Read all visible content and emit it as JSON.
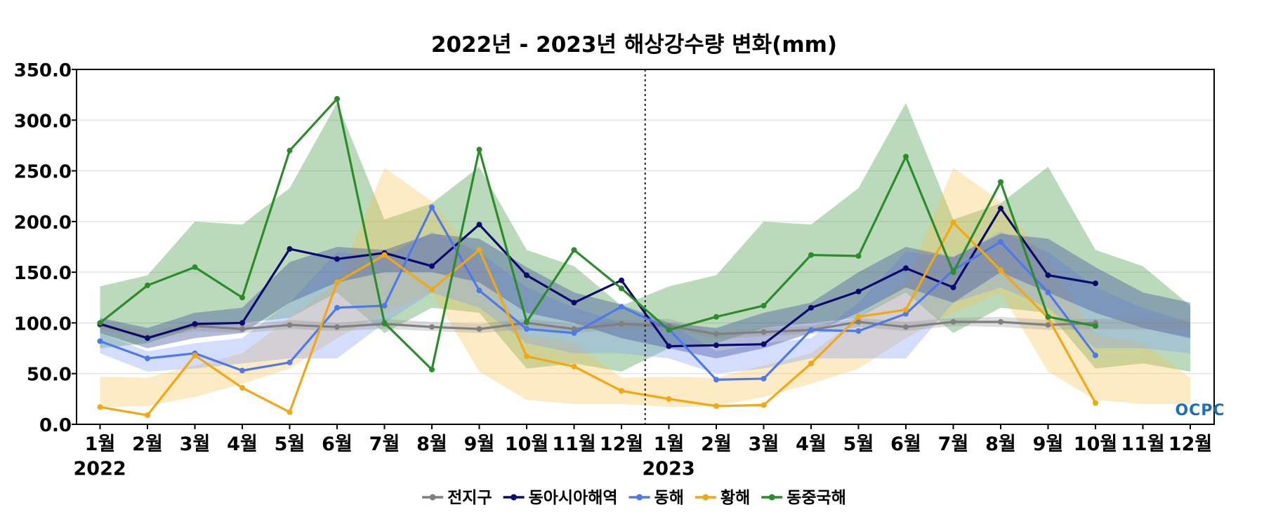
{
  "chart_data": {
    "type": "line",
    "title": "2022년 - 2023년 해상강수량 변화(mm)",
    "ylim": [
      0,
      350
    ],
    "yticks": [
      0,
      50,
      100,
      150,
      200,
      250,
      300,
      350
    ],
    "ytick_labels": [
      "0.0",
      "50.0",
      "100.0",
      "150.0",
      "200.0",
      "250.0",
      "300.0",
      "350.0"
    ],
    "grid": "horizontal",
    "legend_position": "bottom-center",
    "categories": [
      "1월",
      "2월",
      "3월",
      "4월",
      "5월",
      "6월",
      "7월",
      "8월",
      "9월",
      "10월",
      "11월",
      "12월",
      "1월",
      "2월",
      "3월",
      "4월",
      "5월",
      "6월",
      "7월",
      "8월",
      "9월",
      "10월",
      "11월",
      "12월"
    ],
    "years": [
      {
        "label": "2022",
        "index": 0
      },
      {
        "label": "2023",
        "index": 12
      }
    ],
    "divider_after_index": 11,
    "series": [
      {
        "name": "전지구",
        "color": "#808080",
        "values": [
          98,
          86,
          97,
          94,
          98,
          96,
          99,
          96,
          94,
          100,
          94,
          99,
          97,
          89,
          91,
          93,
          101,
          96,
          101,
          101,
          98,
          100,
          null,
          null
        ],
        "band_low": [
          94,
          84,
          92,
          90,
          94,
          92,
          94,
          92,
          90,
          94,
          90,
          94,
          94,
          84,
          87,
          89,
          96,
          92,
          97,
          96,
          93,
          94,
          94,
          94
        ],
        "band_high": [
          104,
          91,
          101,
          98,
          103,
          100,
          104,
          101,
          99,
          104,
          99,
          103,
          104,
          91,
          95,
          97,
          105,
          101,
          105,
          106,
          103,
          104,
          104,
          104
        ]
      },
      {
        "name": "동아시아해역",
        "color": "#0a0a6e",
        "values": [
          99,
          85,
          99,
          100,
          173,
          163,
          169,
          156,
          197,
          147,
          120,
          142,
          77,
          78,
          79,
          115,
          131,
          154,
          135,
          213,
          147,
          139,
          null,
          null
        ],
        "band_low": [
          90,
          75,
          85,
          90,
          120,
          140,
          150,
          150,
          140,
          110,
          100,
          85,
          75,
          65,
          75,
          90,
          110,
          135,
          120,
          150,
          130,
          110,
          95,
          85
        ],
        "band_high": [
          105,
          95,
          110,
          115,
          160,
          175,
          172,
          188,
          183,
          155,
          130,
          118,
          100,
          95,
          110,
          120,
          150,
          175,
          165,
          188,
          183,
          155,
          130,
          120
        ]
      },
      {
        "name": "동해",
        "color": "#4f78ea",
        "values": [
          82,
          65,
          70,
          53,
          61,
          115,
          117,
          214,
          132,
          94,
          90,
          116,
          94,
          44,
          45,
          93,
          92,
          109,
          152,
          180,
          130,
          68,
          null,
          null
        ],
        "band_low": [
          70,
          52,
          55,
          60,
          65,
          65,
          100,
          130,
          115,
          80,
          70,
          70,
          65,
          50,
          55,
          65,
          65,
          65,
          120,
          135,
          115,
          75,
          75,
          70
        ],
        "band_high": [
          90,
          72,
          80,
          85,
          120,
          170,
          165,
          190,
          170,
          135,
          115,
          100,
          100,
          72,
          80,
          85,
          120,
          170,
          165,
          190,
          170,
          135,
          115,
          100
        ]
      },
      {
        "name": "황해",
        "color": "#f2a812",
        "values": [
          17,
          9,
          68,
          36,
          12,
          140,
          167,
          133,
          172,
          67,
          57,
          33,
          25,
          18,
          19,
          60,
          106,
          113,
          199,
          152,
          105,
          21,
          null,
          null
        ],
        "band_low": [
          17,
          18,
          27,
          40,
          55,
          85,
          110,
          130,
          52,
          24,
          20,
          20,
          17,
          18,
          27,
          40,
          55,
          85,
          110,
          130,
          52,
          24,
          20,
          20
        ],
        "band_high": [
          47,
          46,
          58,
          70,
          105,
          140,
          253,
          220,
          160,
          88,
          80,
          46,
          47,
          46,
          58,
          70,
          105,
          140,
          253,
          220,
          160,
          88,
          80,
          46
        ]
      },
      {
        "name": "동중국해",
        "color": "#2c8c2c",
        "values": [
          100,
          137,
          155,
          125,
          270,
          321,
          100,
          54,
          271,
          101,
          172,
          134,
          93,
          106,
          117,
          167,
          166,
          264,
          150,
          239,
          106,
          97,
          null,
          null
        ],
        "band_low": [
          75,
          80,
          95,
          100,
          105,
          130,
          90,
          115,
          110,
          55,
          60,
          52,
          75,
          80,
          95,
          100,
          105,
          130,
          90,
          115,
          110,
          55,
          60,
          52
        ],
        "band_high": [
          136,
          147,
          200,
          197,
          233,
          317,
          202,
          218,
          254,
          172,
          156,
          117,
          136,
          147,
          200,
          197,
          233,
          317,
          202,
          218,
          254,
          172,
          156,
          117
        ]
      }
    ],
    "legend_order": [
      0,
      1,
      2,
      3,
      4
    ],
    "band_colors": {
      "동중국해": "#2c8c2c",
      "황해": "#f9c24a",
      "동해": "#7a99f5",
      "동아시아해역": "#3b4b9a",
      "전지구": "#909090"
    }
  },
  "logo": {
    "text": "OCPC",
    "color": "#1b6fbd"
  }
}
